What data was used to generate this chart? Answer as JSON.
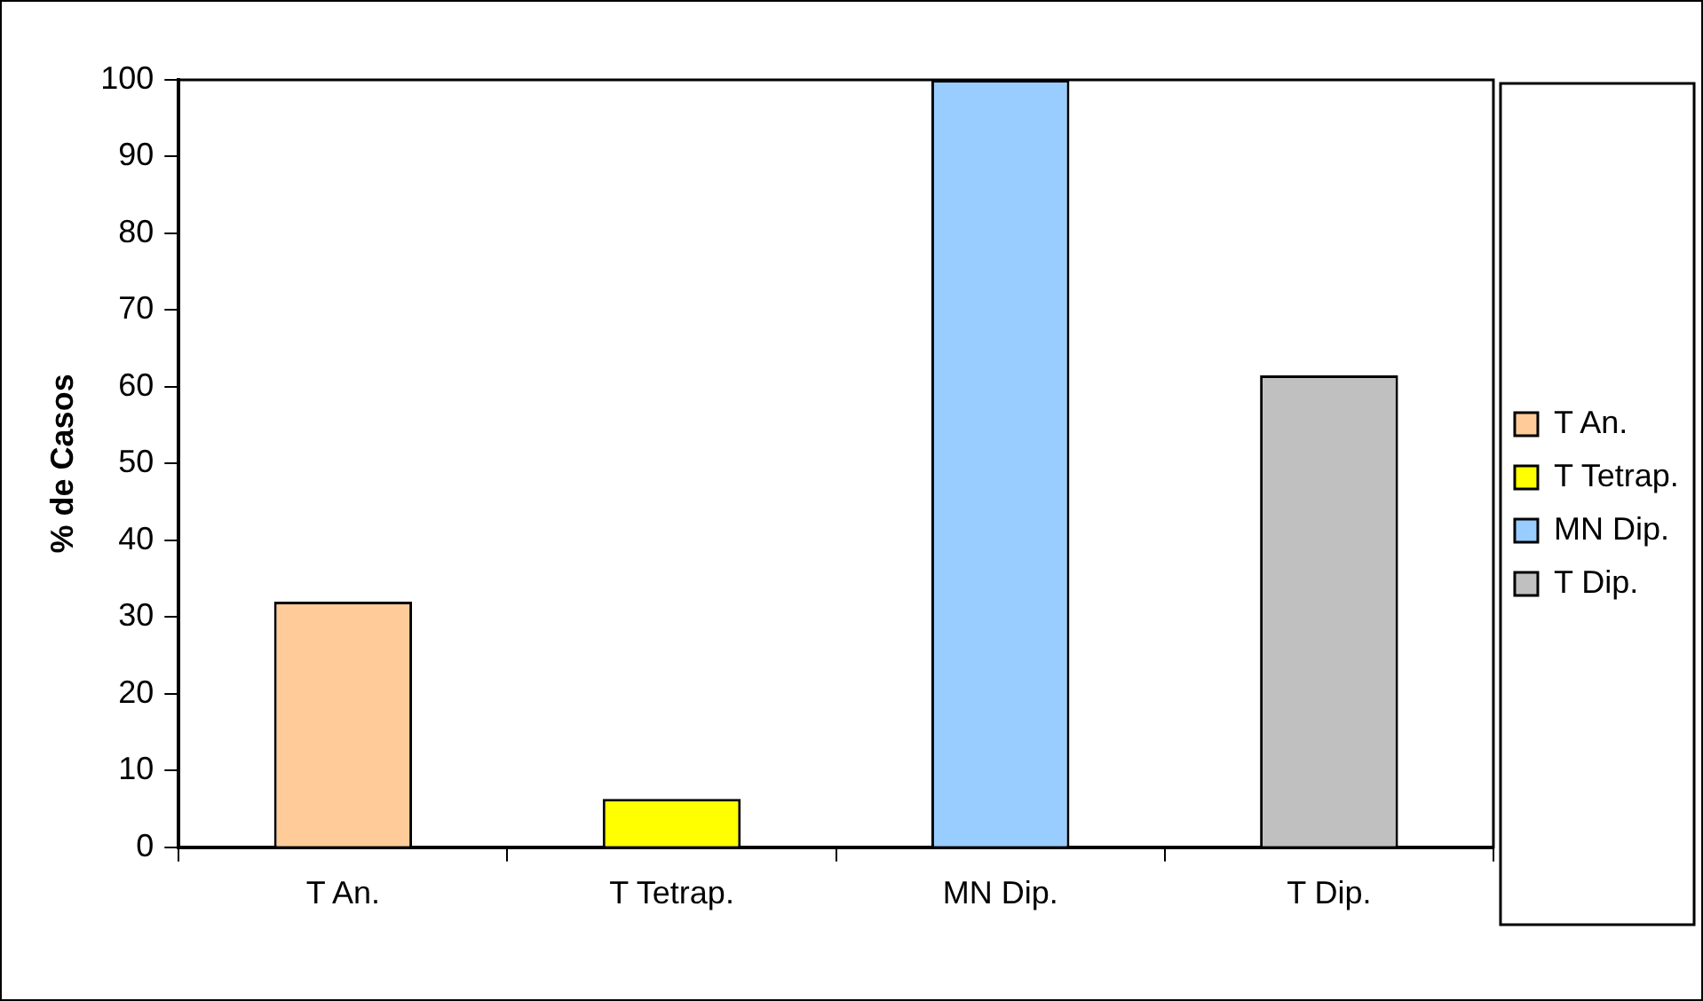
{
  "chart_data": {
    "type": "bar",
    "ylabel": "% de Casos",
    "categories": [
      "T An.",
      "T Tetrap.",
      "MN Dip.",
      "T Dip."
    ],
    "series": [
      {
        "name": "T An.",
        "color": "#ffcc99",
        "values": [
          32,
          null,
          null,
          null
        ]
      },
      {
        "name": "T Tetrap.",
        "color": "#ffff00",
        "values": [
          null,
          6.3,
          null,
          null
        ]
      },
      {
        "name": "MN Dip.",
        "color": "#99ccff",
        "values": [
          null,
          null,
          100,
          null
        ]
      },
      {
        "name": "T Dip.",
        "color": "#c0c0c0",
        "values": [
          null,
          null,
          null,
          61.5
        ]
      }
    ],
    "ylim": [
      0,
      100
    ],
    "yticks": [
      0,
      10,
      20,
      30,
      40,
      50,
      60,
      70,
      80,
      90,
      100
    ],
    "legend": "right"
  }
}
